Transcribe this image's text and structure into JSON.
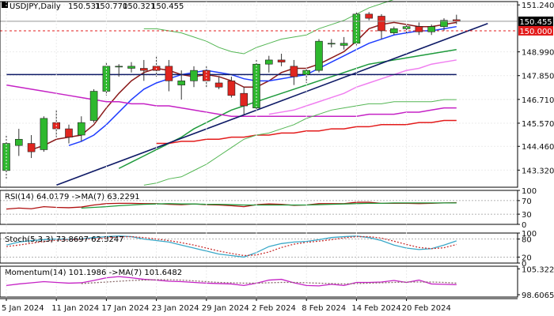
{
  "colors": {
    "bull": "#2eb82e",
    "bear": "#e0251f",
    "wick": "#333333",
    "grid": "#ebebeb",
    "axis_text": "#111111",
    "ma_fast": "#8b1a1a",
    "ma_blue": "#1f3dff",
    "ma_green": "#1e9a3c",
    "ma_pink": "#f07ff0",
    "ma_magenta": "#c522c5",
    "ma_red": "#e31b1b",
    "ma_navy": "#0e1a66",
    "trendline": "#0e1a66",
    "bb_band": "#53b653",
    "rsi_line": "#b01010",
    "rsi_signal": "#1e9a3c",
    "stoch_k": "#3aa8c8",
    "stoch_d": "#c83232",
    "momentum_line": "#c522c5",
    "momentum_signal": "#8a6a6a",
    "price_tag_dark": "#000000",
    "price_tag_red": "#e31b1b",
    "price_tag_light_text": "#ffffff"
  },
  "chart_data": [
    {
      "type": "candlestick",
      "title": "USDJPY,Daily",
      "ohlc_header": [
        "150.531",
        "150.770",
        "150.321",
        "150.455"
      ],
      "ylim": [
        142.5,
        151.4
      ],
      "y_ticks": [
        "151.240",
        "150.455",
        "150.000",
        "148.990",
        "147.850",
        "146.710",
        "145.570",
        "144.460",
        "143.320"
      ],
      "price_tags": [
        {
          "label": "150.455",
          "value": 150.455,
          "style": "dark"
        },
        {
          "label": "150.000",
          "value": 150.0,
          "style": "red"
        }
      ],
      "reference_line": {
        "value": 150.0,
        "color": "red",
        "style": "dashed"
      },
      "x_labels": [
        "5 Jan 2024",
        "11 Jan 2024",
        "17 Jan 2024",
        "23 Jan 2024",
        "29 Jan 2024",
        "2 Feb 2024",
        "8 Feb 2024",
        "14 Feb 2024",
        "20 Feb 2024"
      ],
      "candles": [
        {
          "o": 143.3,
          "h": 145.0,
          "l": 142.9,
          "c": 144.6
        },
        {
          "o": 144.5,
          "h": 145.3,
          "l": 144.0,
          "c": 144.8
        },
        {
          "o": 144.6,
          "h": 145.0,
          "l": 143.9,
          "c": 144.2
        },
        {
          "o": 144.3,
          "h": 145.9,
          "l": 144.2,
          "c": 145.8
        },
        {
          "o": 145.6,
          "h": 146.2,
          "l": 144.9,
          "c": 145.3
        },
        {
          "o": 145.3,
          "h": 145.5,
          "l": 144.6,
          "c": 144.9
        },
        {
          "o": 145.0,
          "h": 145.9,
          "l": 144.7,
          "c": 145.6
        },
        {
          "o": 145.7,
          "h": 147.2,
          "l": 145.6,
          "c": 147.1
        },
        {
          "o": 147.1,
          "h": 148.5,
          "l": 146.9,
          "c": 148.3
        },
        {
          "o": 148.3,
          "h": 148.4,
          "l": 147.8,
          "c": 148.3
        },
        {
          "o": 148.2,
          "h": 148.5,
          "l": 148.0,
          "c": 148.3
        },
        {
          "o": 148.2,
          "h": 148.6,
          "l": 147.6,
          "c": 148.1
        },
        {
          "o": 148.3,
          "h": 148.8,
          "l": 147.8,
          "c": 148.1
        },
        {
          "o": 148.3,
          "h": 148.6,
          "l": 147.1,
          "c": 147.6
        },
        {
          "o": 147.4,
          "h": 148.1,
          "l": 146.7,
          "c": 147.6
        },
        {
          "o": 147.6,
          "h": 148.3,
          "l": 147.3,
          "c": 148.1
        },
        {
          "o": 148.1,
          "h": 148.3,
          "l": 147.3,
          "c": 147.6
        },
        {
          "o": 147.5,
          "h": 147.8,
          "l": 147.2,
          "c": 147.3
        },
        {
          "o": 147.6,
          "h": 147.8,
          "l": 146.8,
          "c": 146.9
        },
        {
          "o": 147.0,
          "h": 147.3,
          "l": 146.0,
          "c": 146.4
        },
        {
          "o": 146.3,
          "h": 148.6,
          "l": 146.2,
          "c": 148.4
        },
        {
          "o": 148.4,
          "h": 148.8,
          "l": 148.0,
          "c": 148.6
        },
        {
          "o": 148.6,
          "h": 148.9,
          "l": 148.3,
          "c": 148.5
        },
        {
          "o": 148.3,
          "h": 148.6,
          "l": 147.4,
          "c": 147.8
        },
        {
          "o": 147.9,
          "h": 148.2,
          "l": 147.5,
          "c": 148.1
        },
        {
          "o": 148.1,
          "h": 149.6,
          "l": 148.0,
          "c": 149.5
        },
        {
          "o": 149.4,
          "h": 149.6,
          "l": 149.2,
          "c": 149.4
        },
        {
          "o": 149.3,
          "h": 149.7,
          "l": 149.1,
          "c": 149.4
        },
        {
          "o": 149.4,
          "h": 150.9,
          "l": 149.3,
          "c": 150.8
        },
        {
          "o": 150.8,
          "h": 150.9,
          "l": 150.5,
          "c": 150.6
        },
        {
          "o": 150.7,
          "h": 150.8,
          "l": 149.6,
          "c": 150.0
        },
        {
          "o": 149.9,
          "h": 150.2,
          "l": 149.8,
          "c": 150.1
        },
        {
          "o": 150.1,
          "h": 150.3,
          "l": 149.8,
          "c": 150.2
        },
        {
          "o": 150.2,
          "h": 150.4,
          "l": 149.8,
          "c": 149.95
        },
        {
          "o": 149.95,
          "h": 150.3,
          "l": 149.8,
          "c": 150.2
        },
        {
          "o": 150.2,
          "h": 150.6,
          "l": 150.0,
          "c": 150.5
        },
        {
          "o": 150.53,
          "h": 150.77,
          "l": 150.32,
          "c": 150.45
        }
      ],
      "overlays": [
        {
          "color_key": "ma_fast",
          "values": [
            null,
            null,
            144.3,
            144.5,
            144.8,
            144.9,
            145.0,
            145.5,
            146.3,
            147.0,
            147.6,
            148.0,
            148.2,
            148.1,
            147.9,
            147.8,
            147.9,
            147.8,
            147.6,
            147.3,
            147.3,
            147.6,
            148.0,
            148.2,
            148.2,
            148.4,
            148.7,
            149.0,
            149.5,
            150.1,
            150.3,
            150.4,
            150.3,
            150.2,
            150.2,
            150.3,
            150.4
          ]
        },
        {
          "color_key": "ma_blue",
          "values": [
            null,
            null,
            null,
            null,
            null,
            144.5,
            144.7,
            145.0,
            145.5,
            146.1,
            146.7,
            147.2,
            147.5,
            147.7,
            147.9,
            148.0,
            148.1,
            148.0,
            147.9,
            147.7,
            147.6,
            147.6,
            147.7,
            147.8,
            147.9,
            148.2,
            148.5,
            148.8,
            149.1,
            149.4,
            149.6,
            149.8,
            149.9,
            150.0,
            150.0,
            150.1,
            150.2
          ]
        },
        {
          "color_key": "ma_green",
          "values": [
            null,
            null,
            null,
            null,
            null,
            null,
            null,
            null,
            null,
            143.4,
            143.7,
            144.0,
            144.3,
            144.6,
            144.9,
            145.3,
            145.6,
            145.9,
            146.2,
            146.4,
            146.6,
            146.8,
            147.0,
            147.2,
            147.4,
            147.6,
            147.8,
            148.0,
            148.2,
            148.4,
            148.5,
            148.6,
            148.7,
            148.8,
            148.9,
            149.0,
            149.1
          ]
        },
        {
          "color_key": "ma_pink",
          "values": [
            null,
            null,
            null,
            null,
            null,
            null,
            null,
            null,
            null,
            null,
            null,
            null,
            null,
            null,
            null,
            null,
            null,
            null,
            null,
            null,
            null,
            146.0,
            146.1,
            146.2,
            146.4,
            146.6,
            146.8,
            147.0,
            147.3,
            147.5,
            147.7,
            147.9,
            148.1,
            148.2,
            148.4,
            148.5,
            148.6
          ]
        },
        {
          "color_key": "ma_magenta",
          "values": [
            147.4,
            147.3,
            147.2,
            147.1,
            147.0,
            146.9,
            146.8,
            146.7,
            146.6,
            146.6,
            146.5,
            146.5,
            146.4,
            146.4,
            146.3,
            146.2,
            146.1,
            146.0,
            145.9,
            145.9,
            145.9,
            145.9,
            145.9,
            145.9,
            145.9,
            145.9,
            145.9,
            145.9,
            145.9,
            146.0,
            146.0,
            146.0,
            146.1,
            146.1,
            146.2,
            146.3,
            146.3
          ]
        },
        {
          "color_key": "ma_red",
          "values": [
            null,
            null,
            null,
            null,
            null,
            null,
            null,
            null,
            null,
            null,
            null,
            null,
            144.6,
            144.6,
            144.7,
            144.7,
            144.8,
            144.8,
            144.9,
            144.9,
            145.0,
            145.0,
            145.1,
            145.1,
            145.2,
            145.2,
            145.3,
            145.3,
            145.4,
            145.4,
            145.5,
            145.5,
            145.5,
            145.6,
            145.6,
            145.7,
            145.7
          ]
        },
        {
          "color_key": "ma_navy",
          "values": [
            147.9,
            147.9,
            147.9,
            147.9,
            147.9,
            147.9,
            147.9,
            147.9,
            147.9,
            147.9,
            147.9,
            147.9,
            147.9,
            147.9,
            147.9,
            147.9,
            147.9,
            147.9,
            147.9,
            147.9,
            147.9,
            147.9,
            147.9,
            147.9,
            147.9,
            147.9,
            147.9,
            147.9,
            147.9,
            147.9,
            147.9,
            147.9,
            147.9,
            147.9,
            147.9,
            147.9,
            147.9
          ]
        },
        {
          "color_key": "bb_band",
          "values": [
            null,
            null,
            null,
            null,
            null,
            null,
            null,
            null,
            null,
            null,
            null,
            150.1,
            150.1,
            150.0,
            149.9,
            149.7,
            149.5,
            149.2,
            149.0,
            148.9,
            149.2,
            149.4,
            149.6,
            149.7,
            149.8,
            150.1,
            150.3,
            150.5,
            150.8,
            151.1,
            151.3,
            151.5,
            151.6,
            151.7,
            151.7,
            151.8,
            151.8
          ]
        },
        {
          "color_key": "bb_band",
          "values": [
            null,
            null,
            null,
            null,
            null,
            null,
            null,
            null,
            null,
            null,
            null,
            142.6,
            142.7,
            142.9,
            143.0,
            143.3,
            143.6,
            144.0,
            144.4,
            144.8,
            145.0,
            145.1,
            145.3,
            145.5,
            145.8,
            146.0,
            146.2,
            146.3,
            146.4,
            146.5,
            146.5,
            146.6,
            146.6,
            146.6,
            146.6,
            146.7,
            146.7
          ]
        }
      ],
      "trendline": {
        "from": {
          "x": 4,
          "y": 142.6
        },
        "to": {
          "x": 38.5,
          "y": 150.35
        }
      }
    },
    {
      "type": "line",
      "title": "RSI(14) 64.0179  ->MA(7) 63.2291",
      "ylim": [
        0,
        100
      ],
      "y_ticks": [
        "100",
        "70",
        "30",
        "0"
      ],
      "levels": [
        70,
        30
      ],
      "series": [
        {
          "color_key": "rsi_line",
          "values": [
            45,
            48,
            46,
            52,
            50,
            49,
            51,
            57,
            61,
            62,
            62,
            61,
            61,
            59,
            58,
            60,
            58,
            57,
            55,
            52,
            58,
            60,
            59,
            56,
            57,
            61,
            61,
            61,
            65,
            65,
            62,
            62,
            62,
            61,
            62,
            63,
            64
          ]
        },
        {
          "color_key": "rsi_signal",
          "values": [
            null,
            null,
            null,
            null,
            null,
            null,
            48,
            50,
            52,
            55,
            57,
            59,
            60,
            61,
            60,
            60,
            59,
            59,
            58,
            57,
            57,
            57,
            57,
            57,
            57,
            58,
            59,
            60,
            61,
            62,
            62,
            63,
            63,
            63,
            63,
            63,
            63
          ]
        }
      ]
    },
    {
      "type": "line",
      "title": "Stoch(5,3,3) 73.8697 62.3247",
      "ylim": [
        0,
        100
      ],
      "y_ticks": [
        "100",
        "80",
        "20",
        "0"
      ],
      "levels": [
        80,
        20
      ],
      "series": [
        {
          "color_key": "stoch_k",
          "values": [
            60,
            70,
            75,
            78,
            80,
            79,
            80,
            85,
            88,
            90,
            88,
            80,
            75,
            70,
            60,
            50,
            40,
            30,
            25,
            20,
            35,
            55,
            65,
            70,
            72,
            78,
            85,
            88,
            90,
            85,
            75,
            60,
            50,
            45,
            48,
            60,
            74
          ]
        },
        {
          "color_key": "stoch_d",
          "values": [
            55,
            60,
            66,
            72,
            76,
            78,
            79,
            81,
            84,
            87,
            88,
            85,
            80,
            75,
            68,
            60,
            50,
            40,
            32,
            25,
            27,
            37,
            52,
            63,
            69,
            73,
            78,
            84,
            88,
            88,
            83,
            73,
            62,
            52,
            48,
            51,
            62
          ]
        }
      ]
    },
    {
      "type": "line",
      "title": "Momentum(14) 101.1986  ->MA(7) 101.6482",
      "ylim": [
        98.0,
        106.0
      ],
      "y_ticks": [
        "105.3221",
        "98.6065"
      ],
      "series": [
        {
          "color_key": "momentum_line",
          "values": [
            101.0,
            101.4,
            101.7,
            102.0,
            101.8,
            101.6,
            101.7,
            102.3,
            103.0,
            103.3,
            103.0,
            102.6,
            102.4,
            102.1,
            102.0,
            101.8,
            101.6,
            101.5,
            101.4,
            101.0,
            101.6,
            102.4,
            102.6,
            101.7,
            101.0,
            100.9,
            101.3,
            101.0,
            101.8,
            101.8,
            101.9,
            102.3,
            101.8,
            102.4,
            101.4,
            101.3,
            101.2
          ]
        },
        {
          "color_key": "momentum_signal",
          "values": [
            null,
            null,
            null,
            null,
            null,
            null,
            101.5,
            101.7,
            101.9,
            102.1,
            102.3,
            102.4,
            102.5,
            102.5,
            102.4,
            102.2,
            102.0,
            101.8,
            101.7,
            101.6,
            101.6,
            101.7,
            101.8,
            101.8,
            101.7,
            101.6,
            101.5,
            101.4,
            101.5,
            101.6,
            101.7,
            101.8,
            101.9,
            101.9,
            101.9,
            101.8,
            101.6
          ]
        }
      ]
    }
  ]
}
